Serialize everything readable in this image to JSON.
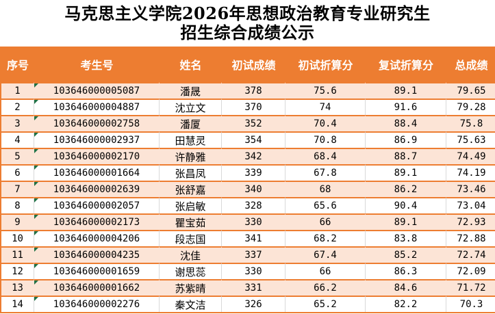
{
  "page": {
    "title_line1": "马克思主义学院2026年思想政治教育专业研究生",
    "title_line2": "招生综合成绩公示"
  },
  "colors": {
    "header_bg": "#ED7D31",
    "header_text": "#FFFFFF",
    "row_alt_bg": "#FCE4D6",
    "row_bg": "#FFFFFF",
    "row_border": "#ED7D31",
    "column_gridline": "#D9D9D9",
    "error_indicator_green": "#1E7145",
    "title_text": "#000000",
    "cell_text": "#000000"
  },
  "icons": {
    "cell_flag": "error-indicator-triangle-icon"
  },
  "table": {
    "columns": [
      {
        "key": "no",
        "label": "序号"
      },
      {
        "key": "candidate_no",
        "label": "考生号"
      },
      {
        "key": "name",
        "label": "姓名"
      },
      {
        "key": "initial_score",
        "label": "初试成绩"
      },
      {
        "key": "initial_converted",
        "label": "初试折算分"
      },
      {
        "key": "retest_converted",
        "label": "复试折算分"
      },
      {
        "key": "total_score",
        "label": "总成绩"
      }
    ],
    "rows": [
      {
        "no": "1",
        "candidate_no": "103646000005087",
        "name": "潘晟",
        "initial_score": "378",
        "initial_converted": "75.6",
        "retest_converted": "89.1",
        "total_score": "79.65"
      },
      {
        "no": "2",
        "candidate_no": "103646000004887",
        "name": "沈立文",
        "initial_score": "370",
        "initial_converted": "74",
        "retest_converted": "91.6",
        "total_score": "79.28"
      },
      {
        "no": "3",
        "candidate_no": "103646000002758",
        "name": "潘厦",
        "initial_score": "352",
        "initial_converted": "70.4",
        "retest_converted": "88.4",
        "total_score": "75.8"
      },
      {
        "no": "4",
        "candidate_no": "103646000002937",
        "name": "田慧灵",
        "initial_score": "354",
        "initial_converted": "70.8",
        "retest_converted": "86.9",
        "total_score": "75.63"
      },
      {
        "no": "5",
        "candidate_no": "103646000002170",
        "name": "许静雅",
        "initial_score": "342",
        "initial_converted": "68.4",
        "retest_converted": "88.7",
        "total_score": "74.49"
      },
      {
        "no": "6",
        "candidate_no": "103646000001664",
        "name": "张昌凤",
        "initial_score": "339",
        "initial_converted": "67.8",
        "retest_converted": "89.1",
        "total_score": "74.19"
      },
      {
        "no": "7",
        "candidate_no": "103646000002639",
        "name": "张舒嘉",
        "initial_score": "340",
        "initial_converted": "68",
        "retest_converted": "86.2",
        "total_score": "73.46"
      },
      {
        "no": "8",
        "candidate_no": "103646000002057",
        "name": "张启敏",
        "initial_score": "328",
        "initial_converted": "65.6",
        "retest_converted": "90.4",
        "total_score": "73.04"
      },
      {
        "no": "9",
        "candidate_no": "103646000002173",
        "name": "瞿宝茹",
        "initial_score": "330",
        "initial_converted": "66",
        "retest_converted": "89.1",
        "total_score": "72.93"
      },
      {
        "no": "10",
        "candidate_no": "103646000004206",
        "name": "段志国",
        "initial_score": "341",
        "initial_converted": "68.2",
        "retest_converted": "83.8",
        "total_score": "72.88"
      },
      {
        "no": "11",
        "candidate_no": "103646000004235",
        "name": "沈佳",
        "initial_score": "337",
        "initial_converted": "67.4",
        "retest_converted": "85.2",
        "total_score": "72.74"
      },
      {
        "no": "12",
        "candidate_no": "103646000001659",
        "name": "谢思蕊",
        "initial_score": "330",
        "initial_converted": "66",
        "retest_converted": "86.3",
        "total_score": "72.09"
      },
      {
        "no": "13",
        "candidate_no": "103646000001662",
        "name": "苏紫晴",
        "initial_score": "331",
        "initial_converted": "66.2",
        "retest_converted": "84.6",
        "total_score": "71.72"
      },
      {
        "no": "14",
        "candidate_no": "103646000002276",
        "name": "秦文洁",
        "initial_score": "326",
        "initial_converted": "65.2",
        "retest_converted": "82.2",
        "total_score": "70.3"
      }
    ]
  }
}
